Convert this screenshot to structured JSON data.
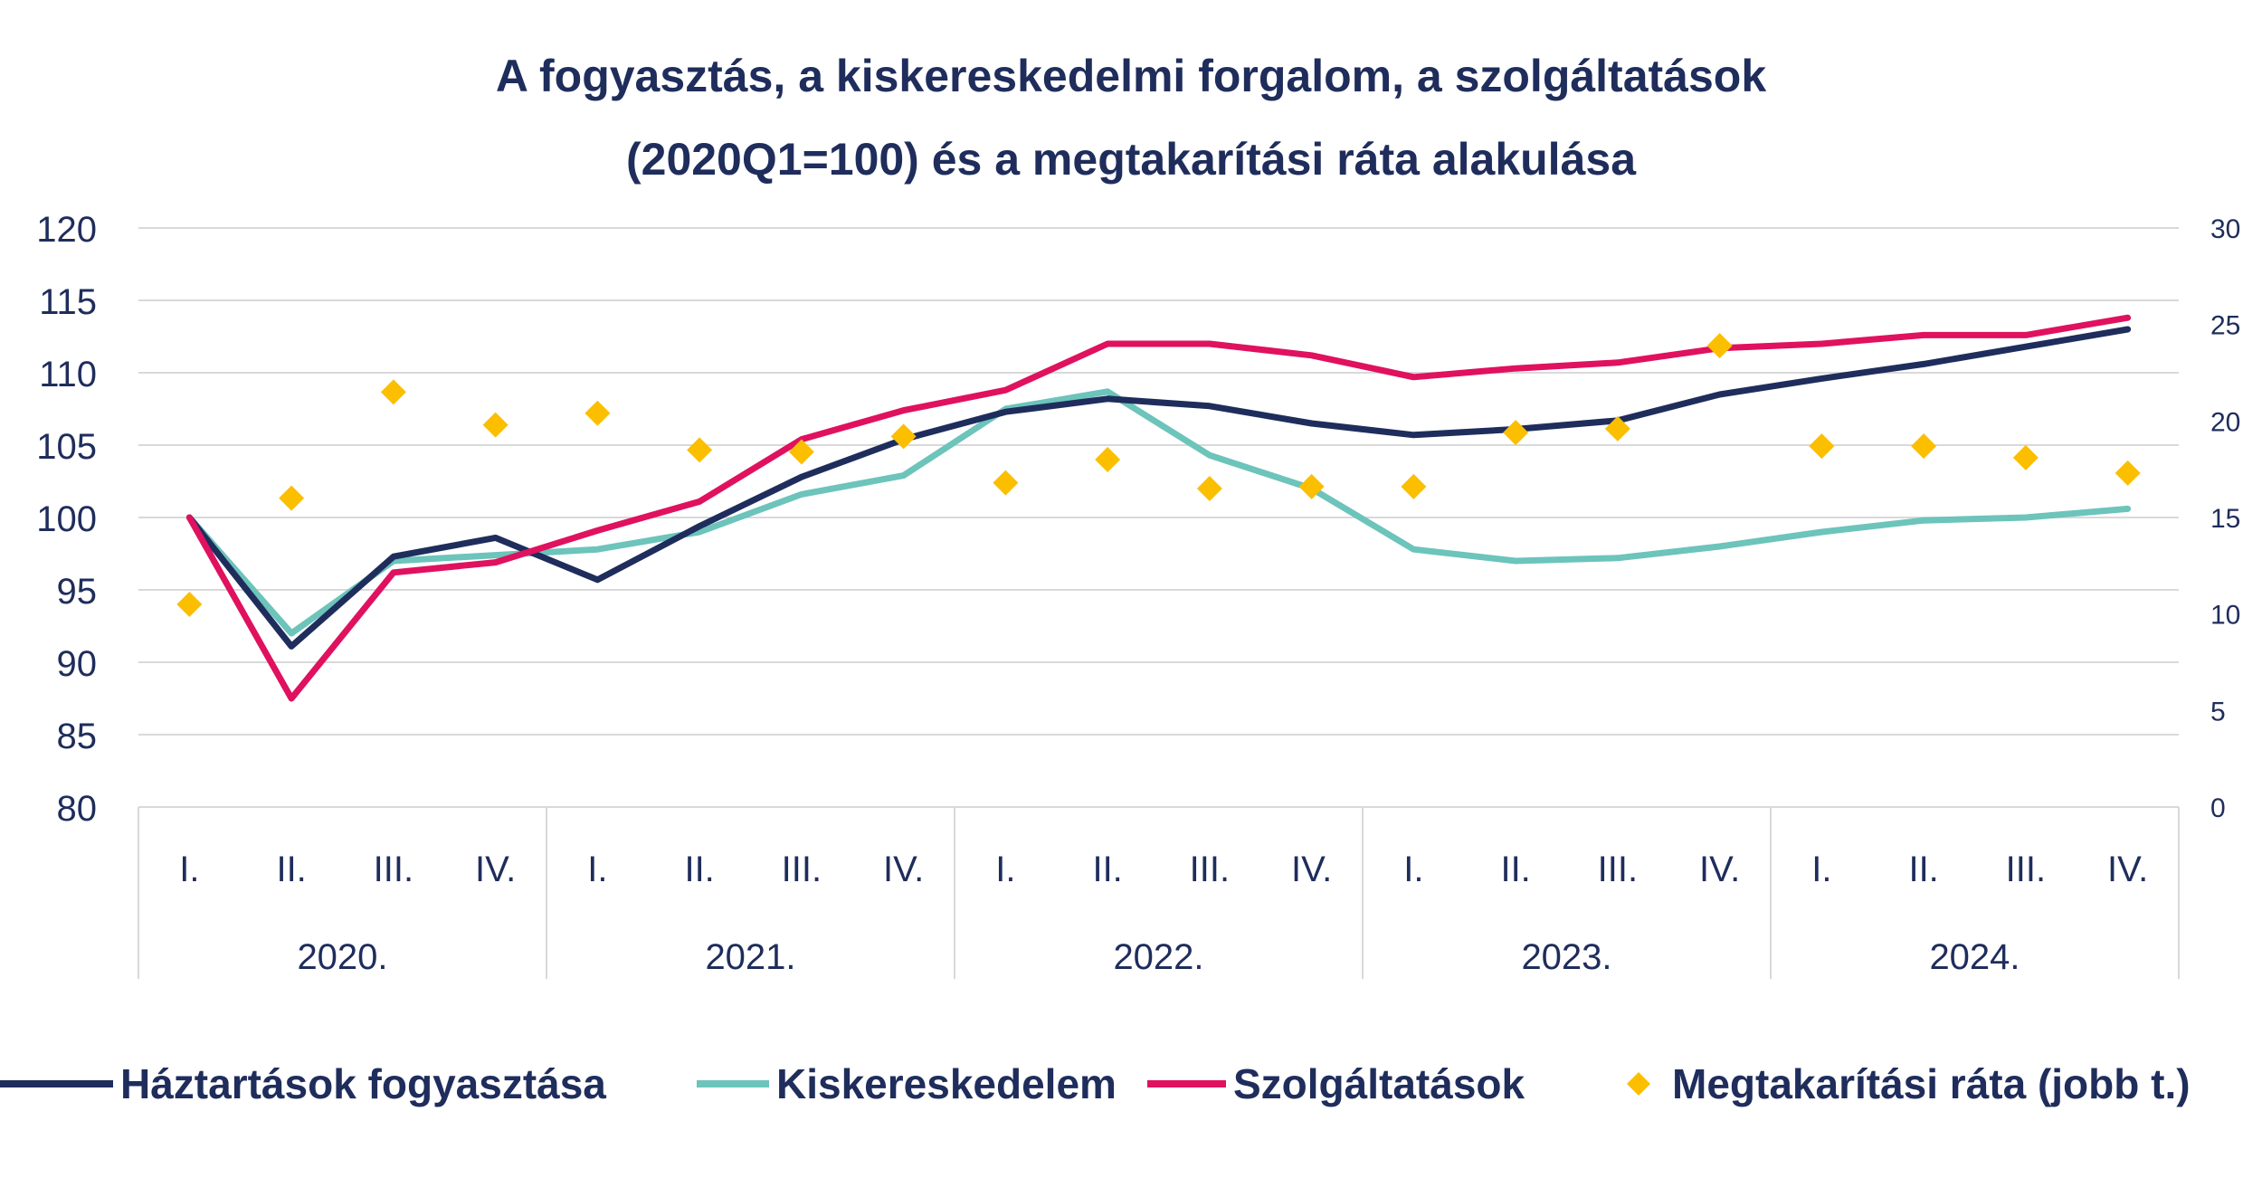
{
  "chart_data": {
    "type": "line",
    "title": [
      "A fogyasztás, a kiskereskedelmi forgalom, a szolgáltatások",
      "(2020Q1=100) és a megtakarítási ráta alakulása"
    ],
    "quarters": [
      "I.",
      "II.",
      "III.",
      "IV.",
      "I.",
      "II.",
      "III.",
      "IV.",
      "I.",
      "II.",
      "III.",
      "IV.",
      "I.",
      "II.",
      "III.",
      "IV.",
      "I.",
      "II.",
      "III.",
      "IV."
    ],
    "years": [
      "2020.",
      "2021.",
      "2022.",
      "2023.",
      "2024."
    ],
    "y_left": {
      "min": 80,
      "max": 120,
      "ticks": [
        "80",
        "85",
        "90",
        "95",
        "100",
        "105",
        "110",
        "115",
        "120"
      ]
    },
    "y_right": {
      "min": 0,
      "max": 30,
      "ticks": [
        "0",
        "5",
        "10",
        "15",
        "20",
        "25",
        "30"
      ]
    },
    "grid": true,
    "legend_position": "bottom",
    "series": [
      {
        "name": "Háztartások fogyasztása",
        "type": "line",
        "axis": "left",
        "color": "#1f2d5c",
        "values": [
          100,
          91.1,
          97.3,
          98.6,
          95.7,
          99.4,
          102.8,
          105.4,
          107.3,
          108.2,
          107.7,
          106.5,
          105.7,
          106.1,
          106.7,
          108.5,
          109.6,
          110.6,
          111.8,
          113.0
        ]
      },
      {
        "name": "Kiskereskedelem",
        "type": "line",
        "axis": "left",
        "color": "#6cc4bb",
        "values": [
          100,
          92.0,
          97.0,
          97.4,
          97.8,
          99.0,
          101.6,
          102.9,
          107.5,
          108.7,
          104.3,
          102.0,
          97.8,
          97.0,
          97.2,
          98.0,
          99.0,
          99.8,
          100.0,
          100.6
        ]
      },
      {
        "name": "Szolgáltatások",
        "type": "line",
        "axis": "left",
        "color": "#e0115f",
        "values": [
          100,
          87.5,
          96.2,
          96.9,
          99.1,
          101.1,
          105.4,
          107.4,
          108.8,
          112.0,
          112.0,
          111.2,
          109.7,
          110.3,
          110.7,
          111.7,
          112.0,
          112.6,
          112.6,
          113.8
        ]
      },
      {
        "name": "Megtakarítási ráta (jobb t.)",
        "type": "scatter",
        "axis": "right",
        "color": "#fbbf00",
        "values": [
          10.5,
          16.0,
          21.5,
          19.8,
          20.4,
          18.5,
          18.4,
          19.2,
          16.8,
          18.0,
          16.5,
          16.6,
          16.6,
          19.4,
          19.6,
          23.9,
          18.7,
          18.7,
          18.1,
          17.3
        ]
      }
    ]
  }
}
